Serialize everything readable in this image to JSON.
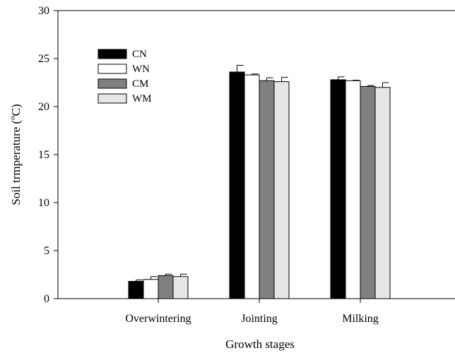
{
  "chart_data": {
    "type": "bar",
    "title": "",
    "xlabel": "Growth stages",
    "ylabel": "Soil trmperature (°C)",
    "ylabel_main": "Soil trmperature (",
    "ylabel_sup": "o",
    "ylabel_tail": "C)",
    "ylim": [
      0,
      30
    ],
    "yticks": [
      "0",
      "5",
      "10",
      "15",
      "20",
      "25",
      "30"
    ],
    "categories": [
      "Overwintering",
      "Jointing",
      "Milking"
    ],
    "series": [
      {
        "name": "CN",
        "values": [
          1.8,
          23.6,
          22.8
        ],
        "errors": [
          0.15,
          0.7,
          0.3
        ],
        "color": "#000000"
      },
      {
        "name": "WN",
        "values": [
          2.0,
          23.3,
          22.7
        ],
        "errors": [
          0.3,
          0.1,
          0.05
        ],
        "color": "#ffffff"
      },
      {
        "name": "CM",
        "values": [
          2.4,
          22.7,
          22.1
        ],
        "errors": [
          0.15,
          0.3,
          0.1
        ],
        "color": "#808080"
      },
      {
        "name": "WM",
        "values": [
          2.3,
          22.6,
          22.0
        ],
        "errors": [
          0.25,
          0.45,
          0.5
        ],
        "color": "#e6e6e6"
      }
    ],
    "grid": false,
    "legend_position": "top-left"
  }
}
